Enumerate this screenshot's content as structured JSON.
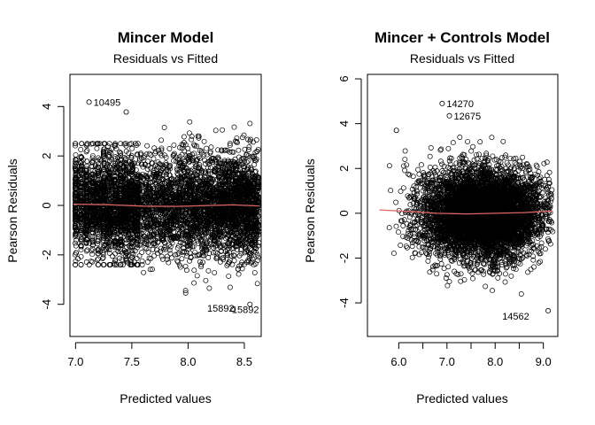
{
  "chart_data": [
    {
      "type": "scatter",
      "title": "Mincer Model",
      "subtitle": "Residuals vs Fitted",
      "xlabel": "Predicted values",
      "ylabel": "Pearson Residuals",
      "xlim": [
        6.95,
        8.65
      ],
      "ylim": [
        -5.3,
        5.3
      ],
      "xticks": [
        7.0,
        7.5,
        8.0,
        8.5
      ],
      "xtick_labels": [
        "7.0",
        "7.5",
        "8.0",
        "8.5"
      ],
      "yticks": [
        -4,
        -2,
        0,
        2,
        4
      ],
      "yticks_labels": [
        "-4",
        "-2",
        "0",
        "2",
        "4"
      ],
      "x_min": 6.98,
      "x_max": 8.63,
      "smoother": {
        "color": "#e06666",
        "x": [
          6.98,
          7.3,
          7.6,
          7.9,
          8.2,
          8.4,
          8.63
        ],
        "y": [
          0.05,
          0.03,
          -0.03,
          -0.04,
          0.0,
          0.02,
          -0.02
        ]
      },
      "annotations": [
        {
          "label": "10495",
          "x": 7.12,
          "y": 4.18
        },
        {
          "label": "15892",
          "x": 8.35,
          "y": -4.2
        },
        {
          "label": "15892",
          "x": 8.45,
          "y": -4.15
        }
      ],
      "highlight_points": [
        {
          "x": 7.12,
          "y": 4.18
        },
        {
          "x": 7.45,
          "y": 3.78
        },
        {
          "x": 8.4,
          "y": -4.2
        },
        {
          "x": 8.55,
          "y": -4.0
        }
      ]
    },
    {
      "type": "scatter",
      "title": "Mincer + Controls Model",
      "subtitle": "Residuals vs Fitted",
      "xlabel": "Predicted values",
      "ylabel": "Pearson Residuals",
      "xlim": [
        5.35,
        9.3
      ],
      "ylim": [
        -5.5,
        6.2
      ],
      "xticks": [
        6.0,
        6.5,
        7.0,
        7.5,
        8.0,
        8.5,
        9.0
      ],
      "xtick_labels": [
        "6.0",
        "",
        "7.0",
        "",
        "8.0",
        "",
        "9.0"
      ],
      "yticks": [
        -4,
        -2,
        0,
        2,
        4,
        6
      ],
      "yticks_labels": [
        "-4",
        "-2",
        "0",
        "2",
        "4",
        "6"
      ],
      "x_min": 5.6,
      "x_max": 9.2,
      "smoother": {
        "color": "#e06666",
        "x": [
          5.6,
          6.2,
          6.8,
          7.4,
          8.0,
          8.6,
          9.2
        ],
        "y": [
          0.15,
          0.08,
          0.0,
          -0.03,
          0.0,
          0.03,
          0.1
        ]
      },
      "annotations": [
        {
          "label": "14270",
          "x": 6.9,
          "y": 4.9
        },
        {
          "label": "12675",
          "x": 7.05,
          "y": 4.35
        },
        {
          "label": "14562",
          "x": 8.8,
          "y": -4.6
        }
      ],
      "highlight_points": [
        {
          "x": 6.9,
          "y": 4.9
        },
        {
          "x": 7.05,
          "y": 4.35
        },
        {
          "x": 5.95,
          "y": 3.7
        },
        {
          "x": 9.1,
          "y": -4.35
        }
      ]
    }
  ]
}
